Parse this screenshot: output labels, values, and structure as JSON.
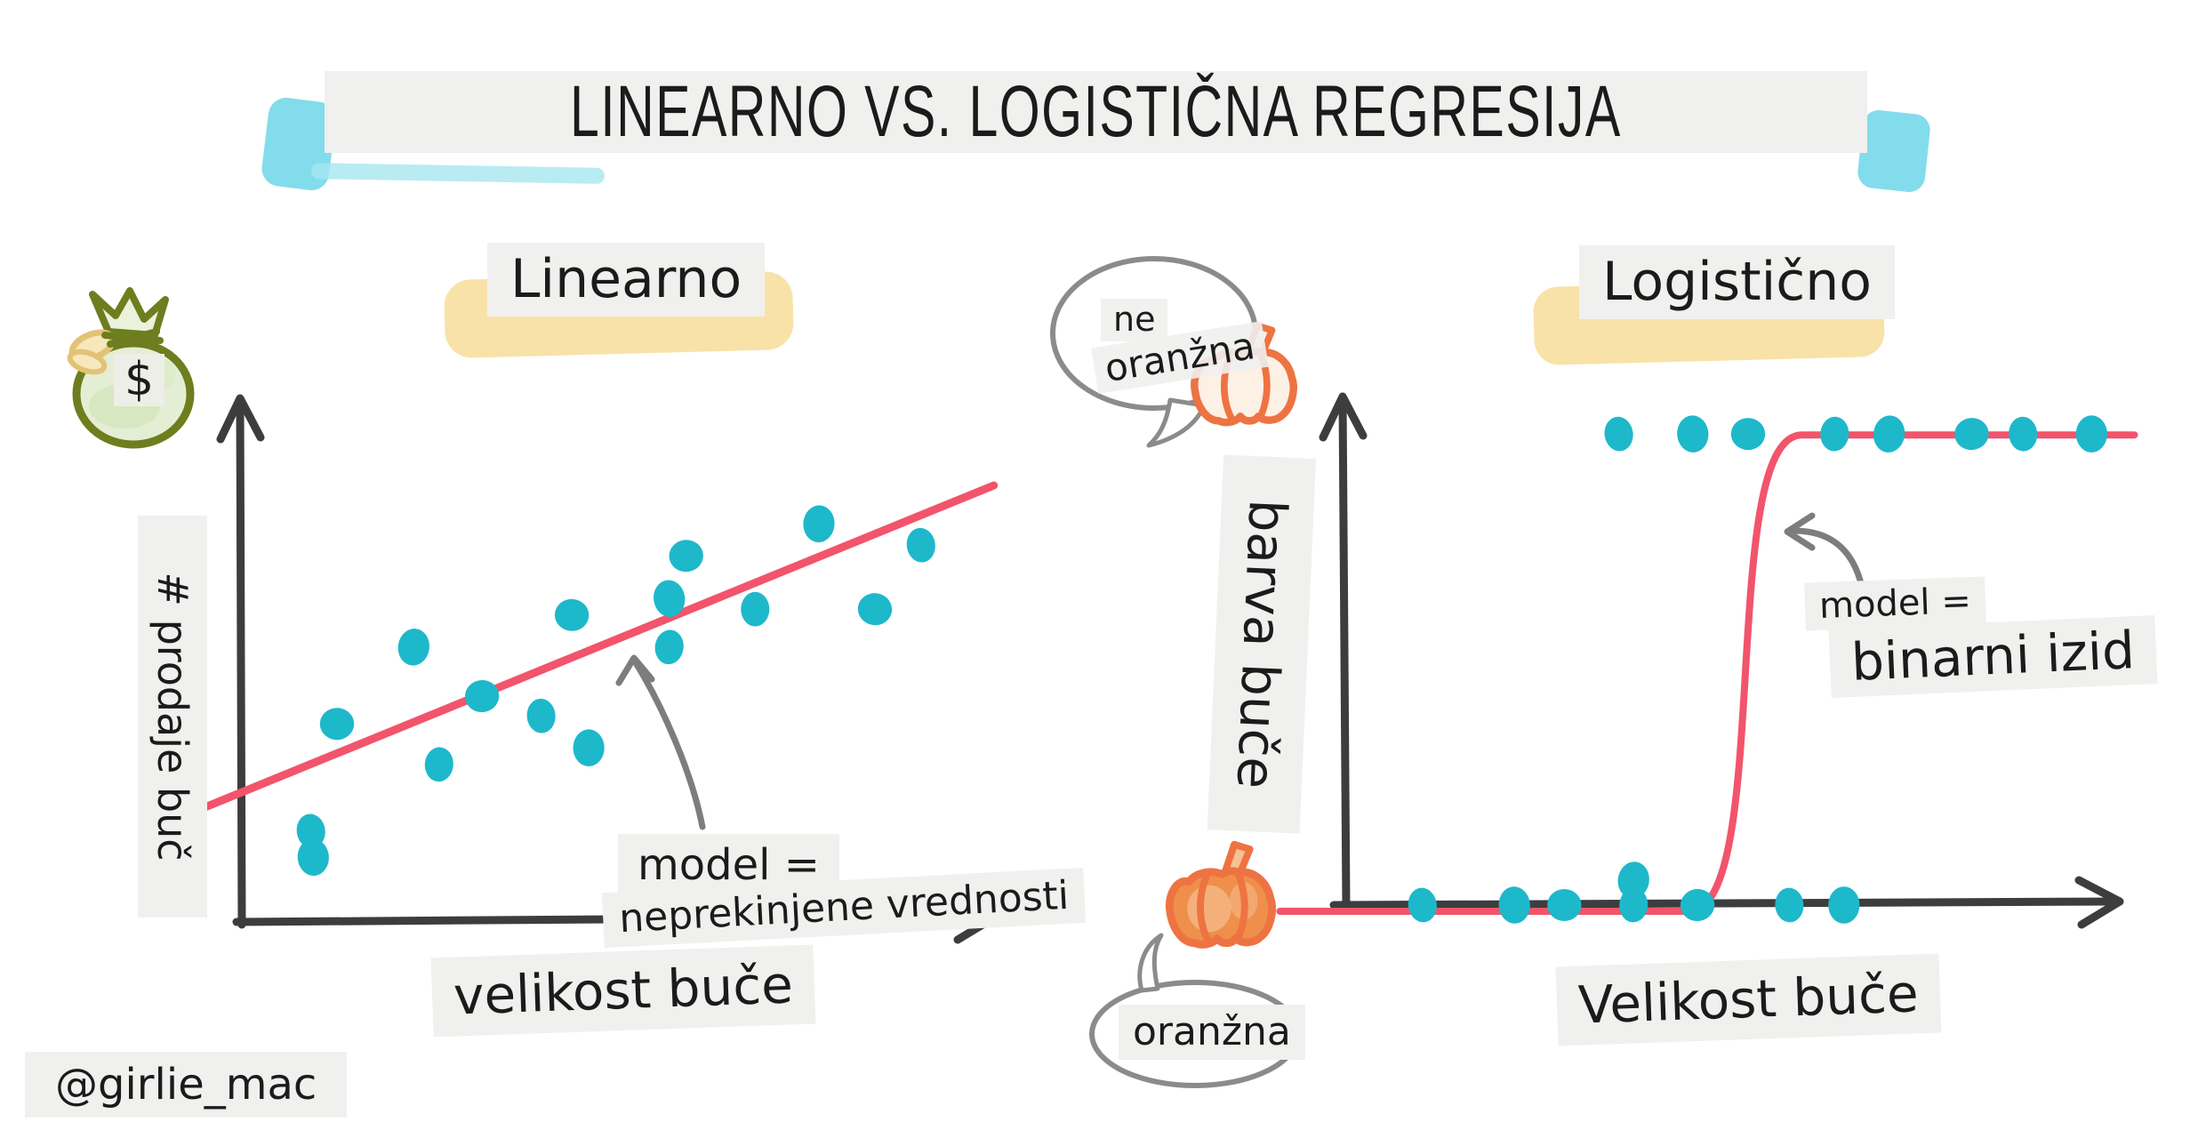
{
  "title": "LINEARNO VS. LOGISTIČNA REGRESIJA",
  "watermark": "@girlie_mac",
  "colors": {
    "dot_teal": "#1eb8cb",
    "line_red": "#f2546b",
    "axis_dark": "#3d3d3d",
    "band_gray": "#f0f0ee",
    "annotation_gray": "#7d7d7d",
    "bubble_gray": "#8b8b8b",
    "highlight_yellow": "#f8df9e",
    "highlight_blue": "#83dcec",
    "bag_olive": "#6e7d1e",
    "bag_fill": "#e4eed4",
    "pumpkin_orange": "#ee7342",
    "pumpkin_fill": "#ef8f4b",
    "pumpkin_pale": "#fdf0e5",
    "text_dark": "#1b1b1b"
  },
  "left": {
    "heading": "Linearno",
    "y_label": "# prodaje buč",
    "x_label": "velikost buče",
    "money_symbol": "$",
    "annotation_line1": "model =",
    "annotation_line2": "neprekinjene vrednosti"
  },
  "right": {
    "heading": "Logistično",
    "y_label": "barva buče",
    "x_label": "Velikost buče",
    "annotation_line1": "model =",
    "annotation_line2": "binarni izid",
    "bubble_top_line1": "ne",
    "bubble_top_line2": "oranžna",
    "bubble_bottom": "oranžna"
  },
  "chart_data": [
    {
      "type": "scatter",
      "title": "Linearno",
      "xlabel": "velikost buče",
      "ylabel": "# prodaje buč",
      "x_range": [
        0,
        1
      ],
      "y_range": [
        0,
        1
      ],
      "grid": false,
      "legend": "none",
      "annotation": "model = neprekinjene vrednosti",
      "points": [
        [
          0.09,
          0.167
        ],
        [
          0.093,
          0.118
        ],
        [
          0.124,
          0.368
        ],
        [
          0.257,
          0.292
        ],
        [
          0.224,
          0.512
        ],
        [
          0.313,
          0.42
        ],
        [
          0.39,
          0.383
        ],
        [
          0.452,
          0.323
        ],
        [
          0.43,
          0.572
        ],
        [
          0.557,
          0.512
        ],
        [
          0.557,
          0.603
        ],
        [
          0.579,
          0.683
        ],
        [
          0.669,
          0.583
        ],
        [
          0.752,
          0.743
        ],
        [
          0.825,
          0.583
        ],
        [
          0.885,
          0.703
        ]
      ],
      "trend_line": {
        "x1": -0.068,
        "y1": 0.2,
        "x2": 0.98,
        "y2": 0.815
      }
    },
    {
      "type": "scatter",
      "title": "Logistično",
      "xlabel": "Velikost buče",
      "ylabel": "barva buče",
      "x_range": [
        0,
        1
      ],
      "y_range": [
        0,
        1
      ],
      "grid": false,
      "legend": "none",
      "annotation": "model = binarni izid",
      "series": [
        {
          "name": "oranžna",
          "class_value": 0,
          "points": [
            [
              0.098,
              0
            ],
            [
              0.216,
              0
            ],
            [
              0.28,
              0
            ],
            [
              0.369,
              0
            ],
            [
              0.369,
              0.048
            ],
            [
              0.451,
              0
            ],
            [
              0.569,
              0
            ],
            [
              0.639,
              0
            ]
          ]
        },
        {
          "name": "ne oranžna",
          "class_value": 1,
          "points": [
            [
              0.35,
              0.909
            ],
            [
              0.445,
              0.909
            ],
            [
              0.516,
              0.909
            ],
            [
              0.627,
              0.909
            ],
            [
              0.697,
              0.909
            ],
            [
              0.803,
              0.909
            ],
            [
              0.869,
              0.909
            ],
            [
              0.957,
              0.909
            ]
          ]
        }
      ],
      "curve": {
        "shape": "sigmoid",
        "x_start": -0.085,
        "rise_start": 0.44,
        "rise_end": 0.585,
        "x_end": 1.012,
        "y_low": -0.012,
        "y_high": 0.907
      }
    }
  ]
}
